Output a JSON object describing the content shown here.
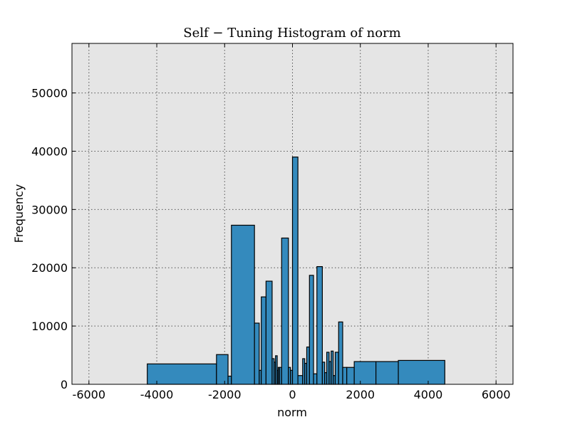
{
  "chart_data": {
    "type": "bar",
    "title": "Self − Tuning Histogram of norm",
    "xlabel": "norm",
    "ylabel": "Frequency",
    "xlim": [
      -6500,
      6500
    ],
    "ylim": [
      0,
      58500
    ],
    "xticks": [
      -6000,
      -4000,
      -2000,
      0,
      2000,
      4000,
      6000
    ],
    "yticks": [
      0,
      10000,
      20000,
      30000,
      40000,
      50000
    ],
    "grid": true,
    "bar_color": "#348abd",
    "background": "#e5e5e5",
    "bins": [
      {
        "x0": -4280,
        "x1": -2240,
        "y": 3500
      },
      {
        "x0": -2240,
        "x1": -1900,
        "y": 5100
      },
      {
        "x0": -1900,
        "x1": -1800,
        "y": 1400
      },
      {
        "x0": -1800,
        "x1": -1120,
        "y": 27300
      },
      {
        "x0": -1120,
        "x1": -980,
        "y": 10500
      },
      {
        "x0": -980,
        "x1": -920,
        "y": 2400
      },
      {
        "x0": -920,
        "x1": -780,
        "y": 15000
      },
      {
        "x0": -780,
        "x1": -600,
        "y": 17700
      },
      {
        "x0": -600,
        "x1": -540,
        "y": 4400
      },
      {
        "x0": -540,
        "x1": -500,
        "y": 3800
      },
      {
        "x0": -500,
        "x1": -450,
        "y": 4900
      },
      {
        "x0": -450,
        "x1": -420,
        "y": 2400
      },
      {
        "x0": -420,
        "x1": -380,
        "y": 2900
      },
      {
        "x0": -380,
        "x1": -320,
        "y": 2900
      },
      {
        "x0": -320,
        "x1": -120,
        "y": 25100
      },
      {
        "x0": -120,
        "x1": -60,
        "y": 2900
      },
      {
        "x0": -60,
        "x1": 0,
        "y": 2400
      },
      {
        "x0": 0,
        "x1": 160,
        "y": 39000
      },
      {
        "x0": 160,
        "x1": 300,
        "y": 1500
      },
      {
        "x0": 300,
        "x1": 360,
        "y": 4400
      },
      {
        "x0": 360,
        "x1": 420,
        "y": 3600
      },
      {
        "x0": 420,
        "x1": 500,
        "y": 6400
      },
      {
        "x0": 500,
        "x1": 620,
        "y": 18700
      },
      {
        "x0": 620,
        "x1": 720,
        "y": 1800
      },
      {
        "x0": 720,
        "x1": 880,
        "y": 20200
      },
      {
        "x0": 880,
        "x1": 950,
        "y": 3800
      },
      {
        "x0": 950,
        "x1": 1010,
        "y": 2000
      },
      {
        "x0": 1010,
        "x1": 1080,
        "y": 5500
      },
      {
        "x0": 1080,
        "x1": 1140,
        "y": 3900
      },
      {
        "x0": 1140,
        "x1": 1200,
        "y": 5700
      },
      {
        "x0": 1200,
        "x1": 1260,
        "y": 1500
      },
      {
        "x0": 1260,
        "x1": 1360,
        "y": 5500
      },
      {
        "x0": 1360,
        "x1": 1480,
        "y": 10700
      },
      {
        "x0": 1480,
        "x1": 1600,
        "y": 2900
      },
      {
        "x0": 1600,
        "x1": 1820,
        "y": 2900
      },
      {
        "x0": 1820,
        "x1": 2460,
        "y": 3900
      },
      {
        "x0": 2460,
        "x1": 3120,
        "y": 3900
      },
      {
        "x0": 3120,
        "x1": 4490,
        "y": 4100
      }
    ]
  }
}
